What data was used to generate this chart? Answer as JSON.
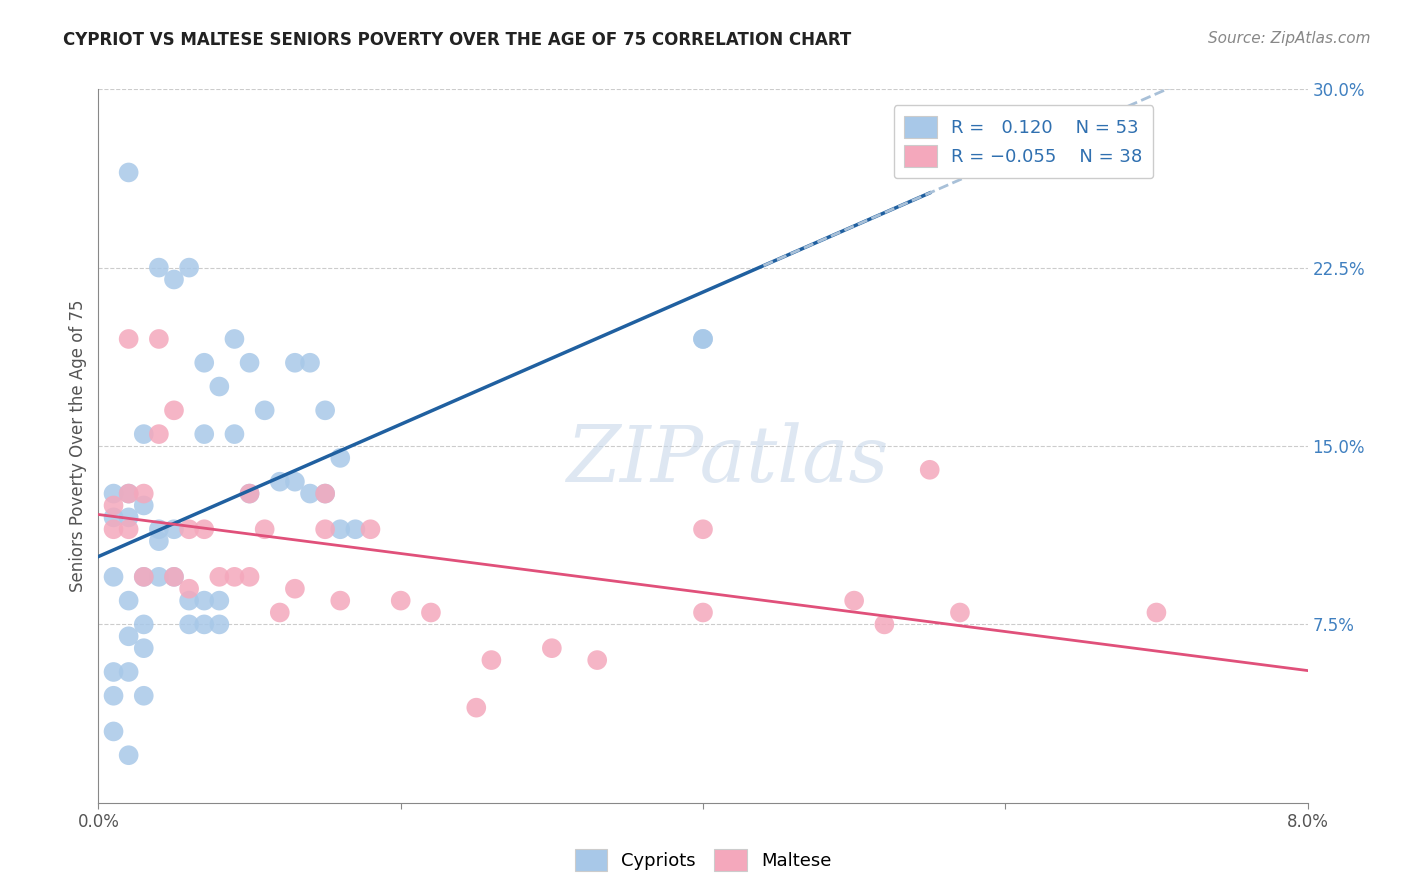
{
  "title": "CYPRIOT VS MALTESE SENIORS POVERTY OVER THE AGE OF 75 CORRELATION CHART",
  "source": "Source: ZipAtlas.com",
  "ylabel": "Seniors Poverty Over the Age of 75",
  "xlabel_cypriot": "Cypriots",
  "xlabel_maltese": "Maltese",
  "xmin": 0.0,
  "xmax": 0.08,
  "ymin": 0.0,
  "ymax": 0.3,
  "yticks": [
    0.075,
    0.15,
    0.225,
    0.3
  ],
  "ytick_labels": [
    "7.5%",
    "15.0%",
    "22.5%",
    "30.0%"
  ],
  "R_cypriot": 0.12,
  "N_cypriot": 53,
  "R_maltese": -0.055,
  "N_maltese": 38,
  "color_cypriot": "#a8c8e8",
  "color_maltese": "#f4a8bc",
  "line_color_cypriot": "#2060a0",
  "line_color_maltese": "#e0507a",
  "dash_color": "#a8c0d8",
  "watermark_color": "#c8d8ea",
  "watermark": "ZIPatlas",
  "title_fontsize": 12,
  "source_fontsize": 11,
  "ylabel_fontsize": 12,
  "tick_fontsize": 12,
  "legend_fontsize": 13,
  "cypriot_x": [
    0.002,
    0.004,
    0.005,
    0.006,
    0.007,
    0.007,
    0.008,
    0.009,
    0.009,
    0.01,
    0.01,
    0.011,
    0.012,
    0.013,
    0.013,
    0.014,
    0.014,
    0.015,
    0.015,
    0.016,
    0.016,
    0.017,
    0.002,
    0.002,
    0.003,
    0.003,
    0.003,
    0.004,
    0.004,
    0.004,
    0.005,
    0.005,
    0.006,
    0.006,
    0.007,
    0.007,
    0.008,
    0.008,
    0.001,
    0.001,
    0.001,
    0.001,
    0.001,
    0.002,
    0.002,
    0.002,
    0.003,
    0.003,
    0.003,
    0.002,
    0.04,
    0.04,
    0.001
  ],
  "cypriot_y": [
    0.265,
    0.225,
    0.22,
    0.225,
    0.155,
    0.185,
    0.175,
    0.195,
    0.155,
    0.185,
    0.13,
    0.165,
    0.135,
    0.185,
    0.135,
    0.13,
    0.185,
    0.13,
    0.165,
    0.115,
    0.145,
    0.115,
    0.13,
    0.12,
    0.155,
    0.095,
    0.125,
    0.115,
    0.11,
    0.095,
    0.115,
    0.095,
    0.085,
    0.075,
    0.075,
    0.085,
    0.085,
    0.075,
    0.13,
    0.12,
    0.095,
    0.055,
    0.045,
    0.055,
    0.085,
    0.07,
    0.075,
    0.065,
    0.045,
    0.02,
    0.195,
    0.195,
    0.03
  ],
  "maltese_x": [
    0.001,
    0.001,
    0.002,
    0.002,
    0.002,
    0.003,
    0.003,
    0.004,
    0.004,
    0.005,
    0.005,
    0.006,
    0.006,
    0.007,
    0.008,
    0.009,
    0.01,
    0.01,
    0.011,
    0.012,
    0.013,
    0.015,
    0.015,
    0.016,
    0.018,
    0.02,
    0.022,
    0.025,
    0.026,
    0.03,
    0.033,
    0.04,
    0.04,
    0.05,
    0.052,
    0.055,
    0.057,
    0.07
  ],
  "maltese_y": [
    0.125,
    0.115,
    0.195,
    0.13,
    0.115,
    0.13,
    0.095,
    0.195,
    0.155,
    0.165,
    0.095,
    0.115,
    0.09,
    0.115,
    0.095,
    0.095,
    0.095,
    0.13,
    0.115,
    0.08,
    0.09,
    0.115,
    0.13,
    0.085,
    0.115,
    0.085,
    0.08,
    0.04,
    0.06,
    0.065,
    0.06,
    0.08,
    0.115,
    0.085,
    0.075,
    0.14,
    0.08,
    0.08
  ]
}
